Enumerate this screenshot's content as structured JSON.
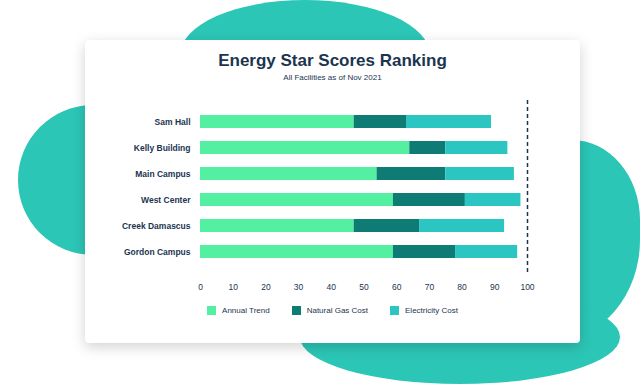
{
  "chart_data": {
    "type": "bar",
    "title": "Energy Star Scores Ranking",
    "subtitle": "All Facilities as of Nov 2021",
    "orientation": "horizontal",
    "stacked": true,
    "grid": false,
    "legend": "bottom",
    "categories": [
      "Sam Hall",
      "Kelly Building",
      "Main Campus",
      "West Center",
      "Creek Damascus",
      "Gordon Campus"
    ],
    "series": [
      {
        "name": "Annual Trend",
        "color": "#52f0a0",
        "values": [
          47,
          64,
          54,
          59,
          47,
          59
        ]
      },
      {
        "name": "Natural Gas Cost",
        "color": "#0e7c74",
        "values": [
          16,
          11,
          21,
          22,
          20,
          19
        ]
      },
      {
        "name": "Electricity Cost",
        "color": "#2cc6c2",
        "values": [
          26,
          19,
          21,
          17,
          26,
          19
        ]
      }
    ],
    "xlim": [
      0,
      100
    ],
    "xticks": [
      0,
      10,
      20,
      30,
      40,
      50,
      60,
      70,
      80,
      90,
      100
    ]
  }
}
